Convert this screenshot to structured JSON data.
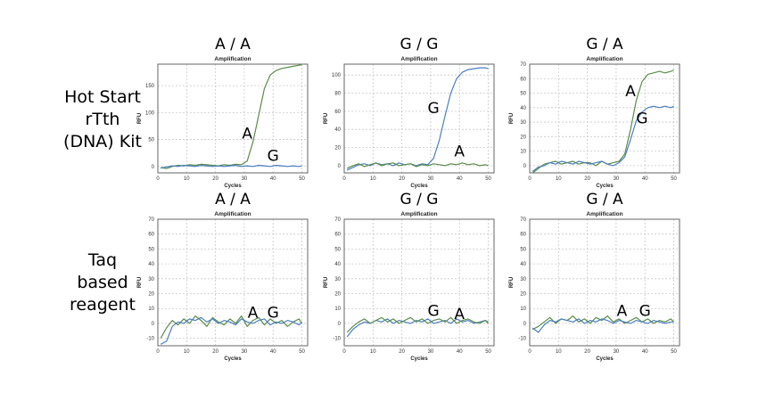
{
  "row_labels": [
    [
      "Hot Start",
      "rTth",
      "(DNA) Kit"
    ],
    [
      "Taq",
      "based",
      "reagent"
    ]
  ],
  "colors": {
    "green_series": "#5a8c4a",
    "blue_series": "#4a7fc0",
    "grid": "#c8c8c8",
    "frame": "#666666"
  },
  "chart_data": [
    {
      "type": "line",
      "title": "A / A",
      "subtitle": "Amplification",
      "xlabel": "Cycles",
      "ylabel": "RFU",
      "xlim": [
        0,
        52
      ],
      "ylim": [
        -12,
        190
      ],
      "xticks": [
        0,
        10,
        20,
        30,
        40,
        50
      ],
      "yticks": [
        0,
        50,
        100,
        150
      ],
      "grid": true,
      "x": [
        1,
        3,
        5,
        7,
        9,
        11,
        13,
        15,
        17,
        19,
        21,
        23,
        25,
        27,
        29,
        31,
        33,
        35,
        37,
        39,
        41,
        43,
        45,
        47,
        49,
        50
      ],
      "series": [
        {
          "name": "A",
          "color": "green",
          "values": [
            -2,
            -4,
            0,
            2,
            1,
            3,
            2,
            4,
            3,
            2,
            1,
            3,
            2,
            4,
            3,
            10,
            45,
            95,
            145,
            170,
            178,
            182,
            184,
            186,
            188,
            189
          ]
        },
        {
          "name": "G",
          "color": "blue",
          "values": [
            -3,
            -1,
            1,
            0,
            2,
            1,
            0,
            2,
            1,
            0,
            1,
            0,
            1,
            2,
            0,
            1,
            0,
            2,
            1,
            0,
            2,
            1,
            0,
            1,
            0,
            1
          ]
        }
      ],
      "annotations": [
        {
          "text": "A",
          "x": 31,
          "y": 52
        },
        {
          "text": "G",
          "x": 40,
          "y": 10
        }
      ]
    },
    {
      "type": "line",
      "title": "G / G",
      "subtitle": "Amplification",
      "xlabel": "Cycles",
      "ylabel": "RFU",
      "xlim": [
        0,
        52
      ],
      "ylim": [
        -8,
        112
      ],
      "xticks": [
        0,
        10,
        20,
        30,
        40,
        50
      ],
      "yticks": [
        0,
        20,
        40,
        60,
        80,
        100
      ],
      "grid": true,
      "x": [
        1,
        3,
        5,
        7,
        9,
        11,
        13,
        15,
        17,
        19,
        21,
        23,
        25,
        27,
        29,
        31,
        33,
        35,
        37,
        39,
        41,
        43,
        45,
        47,
        49,
        50
      ],
      "series": [
        {
          "name": "G",
          "color": "blue",
          "values": [
            -5,
            -2,
            1,
            2,
            0,
            3,
            1,
            2,
            0,
            3,
            1,
            2,
            0,
            2,
            1,
            8,
            28,
            55,
            80,
            96,
            103,
            106,
            107,
            108,
            108,
            107
          ]
        },
        {
          "name": "A",
          "color": "green",
          "values": [
            -3,
            0,
            2,
            -1,
            1,
            3,
            0,
            2,
            3,
            0,
            1,
            2,
            -1,
            1,
            0,
            2,
            1,
            0,
            2,
            1,
            3,
            1,
            2,
            0,
            1,
            0
          ]
        }
      ],
      "annotations": [
        {
          "text": "G",
          "x": 31,
          "y": 58
        },
        {
          "text": "A",
          "x": 40,
          "y": 10
        }
      ]
    },
    {
      "type": "line",
      "title": "G / A",
      "subtitle": "Amplification",
      "xlabel": "Cycles",
      "ylabel": "RFU",
      "xlim": [
        0,
        52
      ],
      "ylim": [
        -5,
        70
      ],
      "xticks": [
        0,
        10,
        20,
        30,
        40,
        50
      ],
      "yticks": [
        0,
        10,
        20,
        30,
        40,
        50,
        60,
        70
      ],
      "grid": true,
      "x": [
        1,
        3,
        5,
        7,
        9,
        11,
        13,
        15,
        17,
        19,
        21,
        23,
        25,
        27,
        29,
        31,
        33,
        35,
        37,
        39,
        41,
        43,
        45,
        47,
        49,
        50
      ],
      "series": [
        {
          "name": "A",
          "color": "green",
          "values": [
            -5,
            -2,
            1,
            2,
            3,
            1,
            2,
            3,
            1,
            2,
            2,
            0,
            3,
            1,
            2,
            3,
            8,
            25,
            45,
            58,
            63,
            64,
            65,
            64,
            65,
            66
          ]
        },
        {
          "name": "G",
          "color": "blue",
          "values": [
            -4,
            -1,
            0,
            2,
            1,
            3,
            2,
            1,
            3,
            2,
            1,
            2,
            3,
            1,
            0,
            2,
            6,
            18,
            31,
            37,
            40,
            41,
            40,
            41,
            40,
            41
          ]
        }
      ],
      "annotations": [
        {
          "text": "A",
          "x": 35,
          "y": 48
        },
        {
          "text": "G",
          "x": 39,
          "y": 29
        }
      ]
    },
    {
      "type": "line",
      "title": "A / A",
      "subtitle": "Amplification",
      "xlabel": "Cycles",
      "ylabel": "RFU",
      "xlim": [
        0,
        52
      ],
      "ylim": [
        -15,
        70
      ],
      "xticks": [
        0,
        10,
        20,
        30,
        40,
        50
      ],
      "yticks": [
        -10,
        0,
        10,
        20,
        30,
        40,
        50,
        60,
        70
      ],
      "grid": true,
      "x": [
        1,
        3,
        5,
        7,
        9,
        11,
        13,
        15,
        17,
        19,
        21,
        23,
        25,
        27,
        29,
        31,
        33,
        35,
        37,
        39,
        41,
        43,
        45,
        47,
        49,
        50
      ],
      "series": [
        {
          "name": "A",
          "color": "green",
          "values": [
            -10,
            -3,
            2,
            -1,
            3,
            0,
            5,
            2,
            -2,
            4,
            1,
            -1,
            3,
            0,
            5,
            -2,
            2,
            4,
            -1,
            3,
            0,
            2,
            -2,
            1,
            3,
            0
          ]
        },
        {
          "name": "G",
          "color": "blue",
          "values": [
            -14,
            -12,
            -2,
            1,
            0,
            3,
            2,
            4,
            1,
            3,
            0,
            2,
            1,
            -1,
            3,
            1,
            0,
            2,
            3,
            -1,
            1,
            0,
            2,
            1,
            -1,
            1
          ]
        }
      ],
      "annotations": [
        {
          "text": "A",
          "x": 33,
          "y": 4
        },
        {
          "text": "G",
          "x": 40,
          "y": 4
        }
      ]
    },
    {
      "type": "line",
      "title": "G / G",
      "subtitle": "Amplification",
      "xlabel": "Cycles",
      "ylabel": "RFU",
      "xlim": [
        0,
        52
      ],
      "ylim": [
        -15,
        70
      ],
      "xticks": [
        0,
        10,
        20,
        30,
        40,
        50
      ],
      "yticks": [
        -10,
        0,
        10,
        20,
        30,
        40,
        50,
        60,
        70
      ],
      "grid": true,
      "x": [
        1,
        3,
        5,
        7,
        9,
        11,
        13,
        15,
        17,
        19,
        21,
        23,
        25,
        27,
        29,
        31,
        33,
        35,
        37,
        39,
        41,
        43,
        45,
        47,
        49,
        50
      ],
      "series": [
        {
          "name": "G",
          "color": "blue",
          "values": [
            -9,
            -4,
            -1,
            1,
            0,
            2,
            1,
            3,
            0,
            2,
            1,
            0,
            2,
            1,
            3,
            0,
            1,
            2,
            0,
            3,
            1,
            2,
            0,
            1,
            2,
            1
          ]
        },
        {
          "name": "A",
          "color": "green",
          "values": [
            -6,
            -2,
            1,
            3,
            0,
            2,
            4,
            1,
            3,
            0,
            2,
            4,
            1,
            3,
            0,
            2,
            3,
            1,
            4,
            0,
            2,
            3,
            1,
            0,
            2,
            0
          ]
        }
      ],
      "annotations": [
        {
          "text": "G",
          "x": 31,
          "y": 5
        },
        {
          "text": "A",
          "x": 40,
          "y": 3
        }
      ]
    },
    {
      "type": "line",
      "title": "G / A",
      "subtitle": "Amplification",
      "xlabel": "Cycles",
      "ylabel": "RFU",
      "xlim": [
        0,
        52
      ],
      "ylim": [
        -15,
        70
      ],
      "xticks": [
        0,
        10,
        20,
        30,
        40,
        50
      ],
      "yticks": [
        -10,
        0,
        10,
        20,
        30,
        40,
        50,
        60,
        70
      ],
      "grid": true,
      "x": [
        1,
        3,
        5,
        7,
        9,
        11,
        13,
        15,
        17,
        19,
        21,
        23,
        25,
        27,
        29,
        31,
        33,
        35,
        37,
        39,
        41,
        43,
        45,
        47,
        49,
        50
      ],
      "series": [
        {
          "name": "A",
          "color": "green",
          "values": [
            -4,
            -2,
            1,
            4,
            0,
            3,
            2,
            5,
            1,
            3,
            0,
            4,
            2,
            5,
            1,
            3,
            0,
            2,
            4,
            1,
            3,
            0,
            2,
            1,
            3,
            1
          ]
        },
        {
          "name": "G",
          "color": "blue",
          "values": [
            -3,
            -6,
            -1,
            2,
            1,
            3,
            2,
            1,
            3,
            0,
            2,
            1,
            3,
            2,
            0,
            2,
            1,
            0,
            2,
            1,
            0,
            2,
            1,
            0,
            1,
            1
          ]
        }
      ],
      "annotations": [
        {
          "text": "A",
          "x": 32,
          "y": 5
        },
        {
          "text": "G",
          "x": 40,
          "y": 5
        }
      ]
    }
  ]
}
